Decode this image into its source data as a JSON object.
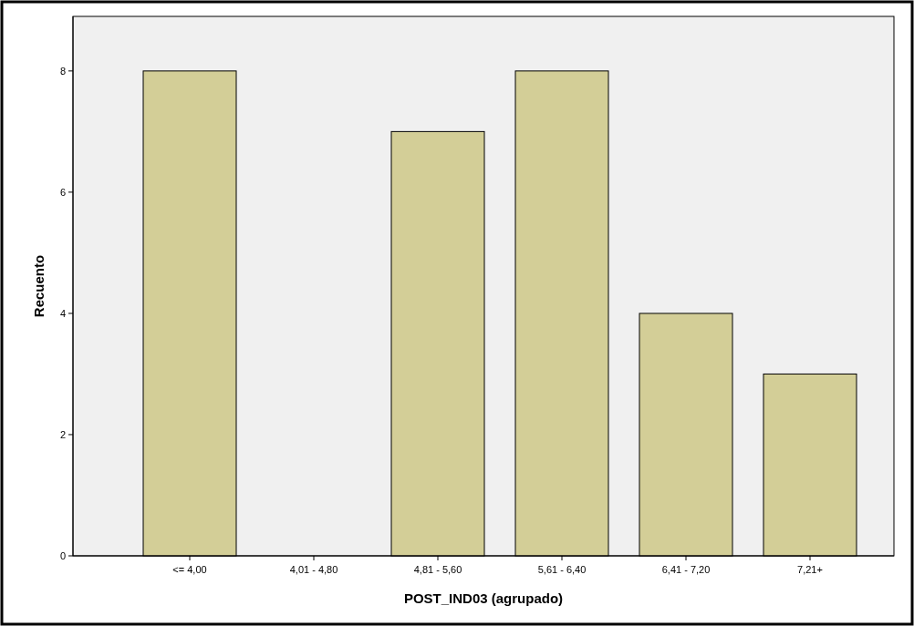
{
  "chart_data": {
    "type": "bar",
    "xlabel": "POST_IND03 (agrupado)",
    "ylabel": "Recuento",
    "categories": [
      "<= 4,00",
      "4,01 - 4,80",
      "4,81 - 5,60",
      "5,61 - 6,40",
      "6,41 - 7,20",
      "7,21+"
    ],
    "values": [
      8,
      0,
      7,
      8,
      4,
      3
    ],
    "color": "#d3ce97",
    "ylim": [
      0,
      8.9
    ],
    "yticks": [
      0,
      2,
      4,
      6,
      8
    ],
    "grid": false
  }
}
